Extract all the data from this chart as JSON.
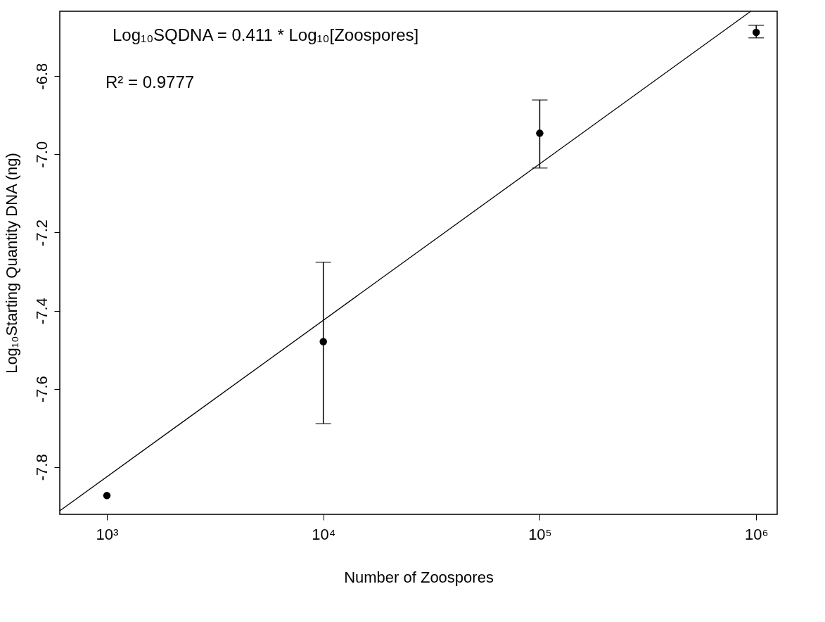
{
  "chart_data": {
    "type": "scatter",
    "xlabel": "Number of Zoospores",
    "ylabel": "Log₁₀Starting Quantity DNA (ng)",
    "annotations": [
      "Log₁₀SQDNA = 0.411 * Log₁₀[Zoospores]",
      "R² = 0.9777"
    ],
    "log": "x",
    "grid": false,
    "marker": "circle",
    "xlim": [
      606,
      1250000
    ],
    "ylim": [
      -7.921,
      -6.634
    ],
    "xticks": [
      {
        "value": 1000,
        "label": "10³"
      },
      {
        "value": 10000,
        "label": "10⁴"
      },
      {
        "value": 100000,
        "label": "10⁵"
      },
      {
        "value": 1000000,
        "label": "10⁶"
      }
    ],
    "yticks": [
      {
        "value": -7.8,
        "label": "-7.8"
      },
      {
        "value": -7.6,
        "label": "-7.6"
      },
      {
        "value": -7.4,
        "label": "-7.4"
      },
      {
        "value": -7.2,
        "label": "-7.2"
      },
      {
        "value": -7.0,
        "label": "-7.0"
      },
      {
        "value": -6.8,
        "label": "-6.8"
      }
    ],
    "series": [
      {
        "type": "scatter",
        "color": "#000000",
        "x": [
          1000,
          10000,
          100000,
          1000000
        ],
        "values": [
          -7.873,
          -7.479,
          -6.946,
          -6.688
        ],
        "errors": [
          null,
          [
            -7.689,
            -7.276
          ],
          [
            -7.035,
            -6.861
          ],
          [
            -6.702,
            -6.67
          ]
        ]
      },
      {
        "type": "line",
        "marker": "none",
        "color": "#000000",
        "x": [
          606,
          944000
        ],
        "values": [
          -7.912,
          -6.634
        ]
      }
    ]
  }
}
